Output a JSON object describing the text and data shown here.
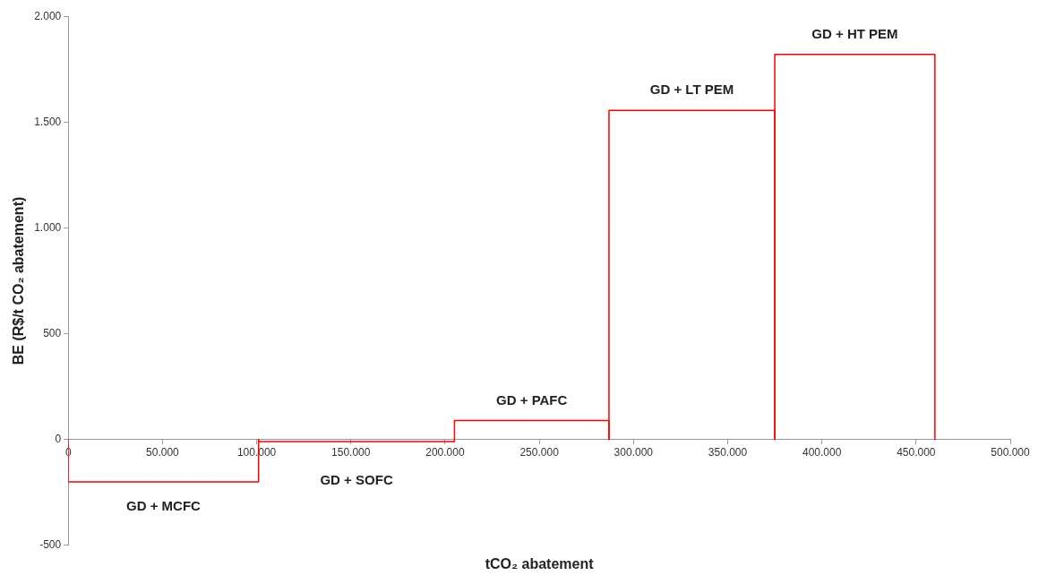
{
  "chart_data": {
    "type": "histogram",
    "xlabel": "tCO₂ abatement",
    "ylabel": "BE (R$/t CO₂ abatement)",
    "bins": [
      0,
      101000,
      205000,
      287000,
      375000,
      460000
    ],
    "values": [
      -200,
      -10,
      90,
      1555,
      1820
    ],
    "color": "#ff0000",
    "xlim": [
      0,
      500000
    ],
    "xticks": [
      0,
      {
        "value": 50000,
        "label": "50.000"
      },
      {
        "value": 100000,
        "label": "100.000"
      },
      {
        "value": 150000,
        "label": "150.000"
      },
      {
        "value": 200000,
        "label": "200.000"
      },
      {
        "value": 250000,
        "label": "250.000"
      },
      {
        "value": 300000,
        "label": "300.000"
      },
      {
        "value": 350000,
        "label": "350.000"
      },
      {
        "value": 400000,
        "label": "400.000"
      },
      {
        "value": 450000,
        "label": "450.000"
      },
      {
        "value": 500000,
        "label": "500.000"
      }
    ],
    "ylim": [
      -500,
      2000
    ],
    "yticks": [
      -500,
      0,
      500,
      {
        "value": 1000,
        "label": "1.000"
      },
      {
        "value": 1500,
        "label": "1.500"
      },
      {
        "value": 2000,
        "label": "2.000"
      }
    ],
    "annotations": [
      "GD + MCFC",
      "GD + SOFC",
      "GD + PAFC",
      "GD + LT PEM",
      "GD + HT PEM"
    ],
    "grid": false,
    "legend": false
  }
}
